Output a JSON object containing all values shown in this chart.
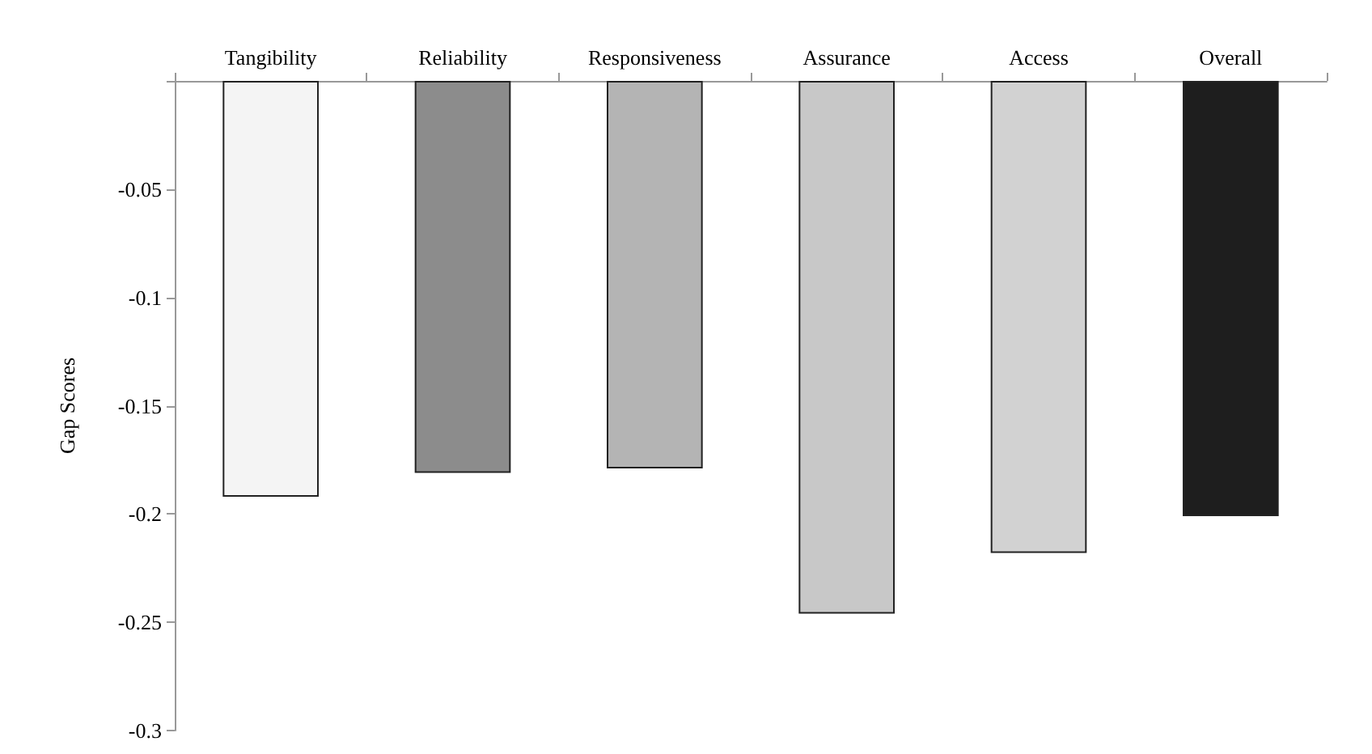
{
  "chart_data": {
    "type": "bar",
    "ylabel": "Gap Scores",
    "categories": [
      "Tangibility",
      "Reliability",
      "Responsiveness",
      "Assurance",
      "Access",
      "Overall"
    ],
    "values": [
      -0.192,
      -0.181,
      -0.179,
      -0.246,
      -0.218,
      -0.201
    ],
    "colors": [
      "#f4f4f4",
      "#8c8c8c",
      "#b4b4b4",
      "#c8c8c8",
      "#d2d2d2",
      "#1e1e1e"
    ],
    "ylim": [
      -0.3,
      0
    ],
    "yticks": [
      {
        "value": 0,
        "label": null
      },
      -0.05,
      -0.1,
      -0.15,
      -0.2,
      -0.25,
      -0.3
    ],
    "grid": false
  }
}
